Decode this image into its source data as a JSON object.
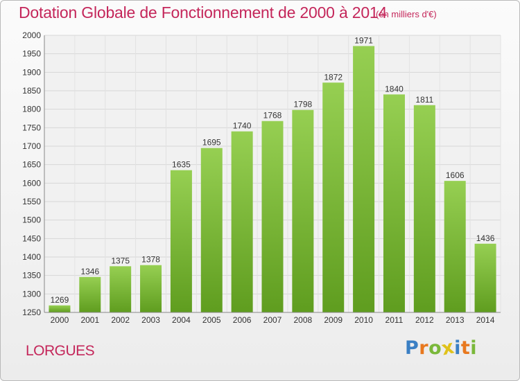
{
  "chart_data": {
    "type": "bar",
    "title": "Dotation Globale de Fonctionnement de 2000 à 2014",
    "subtitle": "(en milliers d'€)",
    "categories": [
      "2000",
      "2001",
      "2002",
      "2003",
      "2004",
      "2005",
      "2006",
      "2007",
      "2008",
      "2009",
      "2010",
      "2011",
      "2012",
      "2013",
      "2014"
    ],
    "values": [
      1269,
      1346,
      1375,
      1378,
      1635,
      1695,
      1740,
      1768,
      1798,
      1872,
      1971,
      1840,
      1811,
      1606,
      1436
    ],
    "ylim": [
      1250,
      2000
    ],
    "yticks": [
      1250,
      1300,
      1350,
      1400,
      1450,
      1500,
      1550,
      1600,
      1650,
      1700,
      1750,
      1800,
      1850,
      1900,
      1950,
      2000
    ],
    "grid": true,
    "bar_color": "#7ab83a"
  },
  "commune": "LORGUES",
  "logo": {
    "text": "Proxiti",
    "letters": [
      "P",
      "r",
      "o",
      "x",
      "i",
      "t",
      "i"
    ],
    "colors": [
      "#3a7fc4",
      "#e8781e",
      "#7ab83a",
      "#e0c21a",
      "#3a7fc4",
      "#e8781e",
      "#7ab83a"
    ]
  }
}
